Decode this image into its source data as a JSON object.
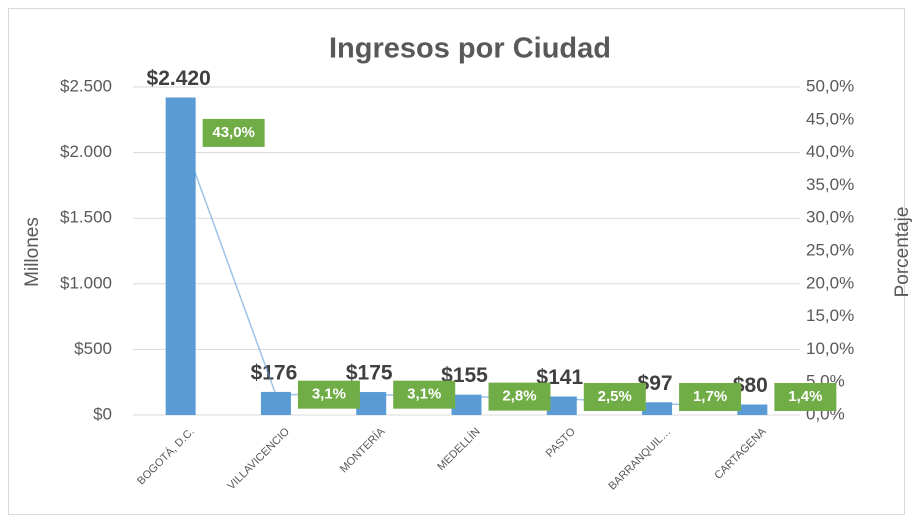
{
  "chart_data": {
    "type": "bar_line",
    "title": "Ingresos por Ciudad",
    "y_label": "Millones",
    "y2_label": "Porcentaje",
    "categories": [
      "BOGOTÁ, D.C.",
      "VILLAVICENCIO",
      "MONTERÍA",
      "MEDELLÍN",
      "PASTO",
      "BARRANQUIL…",
      "CARTAGENA"
    ],
    "series": [
      {
        "type": "bar",
        "color": "#5b9bd5",
        "values": [
          2420,
          176,
          175,
          155,
          141,
          97,
          80
        ],
        "value_labels": [
          "$2.420",
          "$176",
          "$175",
          "$155",
          "$141",
          "$97",
          "$80"
        ]
      },
      {
        "type": "line",
        "axis": "y2",
        "color": "#5b9bd5",
        "label_color": "#70ad47",
        "values": [
          43.0,
          3.1,
          3.1,
          2.8,
          2.5,
          1.7,
          1.4
        ],
        "value_labels": [
          "43,0%",
          "3,1%",
          "3,1%",
          "2,8%",
          "2,5%",
          "1,7%",
          "1,4%"
        ]
      }
    ],
    "ylim": [
      0,
      2500
    ],
    "yticks": [
      {
        "value": 0,
        "label": "$0"
      },
      {
        "value": 500,
        "label": "$500"
      },
      {
        "value": 1000,
        "label": "$1.000"
      },
      {
        "value": 1500,
        "label": "$1.500"
      },
      {
        "value": 2000,
        "label": "$2.000"
      },
      {
        "value": 2500,
        "label": "$2.500"
      }
    ],
    "y2lim": [
      0,
      50
    ],
    "y2ticks": [
      {
        "value": 0,
        "label": "0,0%"
      },
      {
        "value": 5,
        "label": "5,0%"
      },
      {
        "value": 10,
        "label": "10,0%"
      },
      {
        "value": 15,
        "label": "15,0%"
      },
      {
        "value": 20,
        "label": "20,0%"
      },
      {
        "value": 25,
        "label": "25,0%"
      },
      {
        "value": 30,
        "label": "30,0%"
      },
      {
        "value": 35,
        "label": "35,0%"
      },
      {
        "value": 40,
        "label": "40,0%"
      },
      {
        "value": 45,
        "label": "45,0%"
      },
      {
        "value": 50,
        "label": "50,0%"
      }
    ],
    "grid": true
  }
}
